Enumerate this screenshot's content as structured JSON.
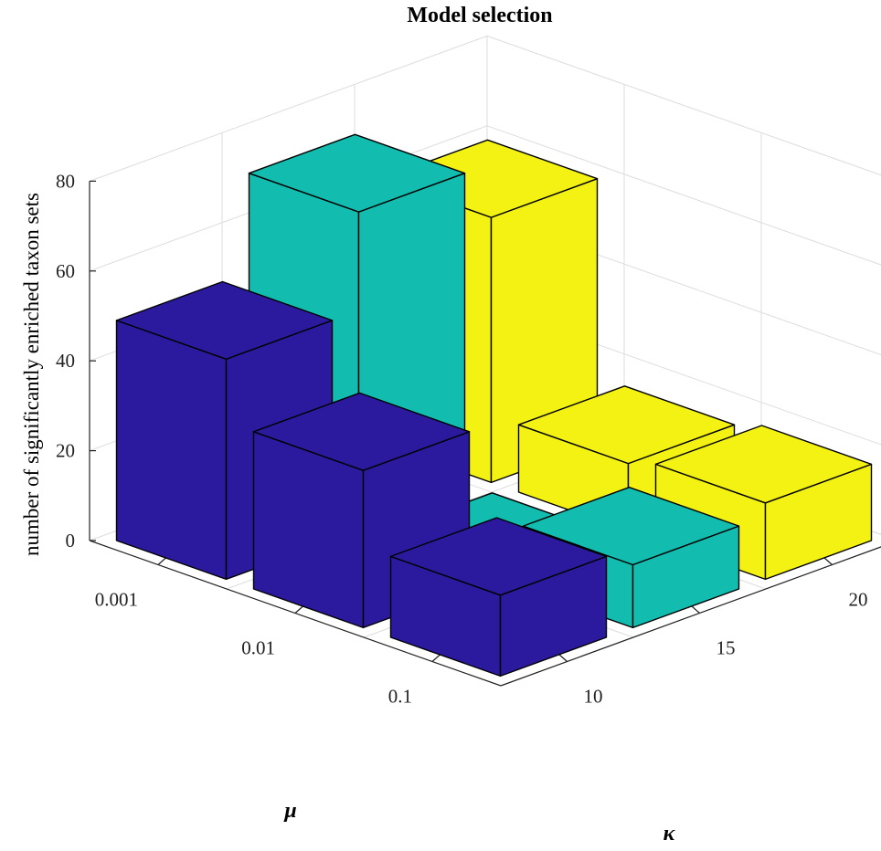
{
  "chart_data": {
    "type": "bar3d",
    "title": "Model selection",
    "zlabel": "number of significantly enriched taxon sets",
    "mu_label": "μ",
    "kappa_label": "κ",
    "mu_categories": [
      "0.001",
      "0.01",
      "0.1"
    ],
    "kappa_categories": [
      "10",
      "15",
      "20"
    ],
    "z_ticks": [
      "0",
      "20",
      "40",
      "60",
      "80"
    ],
    "zlim": [
      0,
      80
    ],
    "values": [
      {
        "mu": "0.001",
        "kappa": "10",
        "value": 49
      },
      {
        "mu": "0.01",
        "kappa": "10",
        "value": 35
      },
      {
        "mu": "0.1",
        "kappa": "10",
        "value": 18
      },
      {
        "mu": "0.001",
        "kappa": "15",
        "value": 71
      },
      {
        "mu": "0.01",
        "kappa": "15",
        "value": 2
      },
      {
        "mu": "0.1",
        "kappa": "15",
        "value": 14
      },
      {
        "mu": "0.001",
        "kappa": "20",
        "value": 59
      },
      {
        "mu": "0.01",
        "kappa": "20",
        "value": 15
      },
      {
        "mu": "0.1",
        "kappa": "20",
        "value": 17
      }
    ],
    "colors": {
      "10": "#2b1a9e",
      "15": "#12bdb0",
      "20": "#f4f213"
    },
    "grid": true
  }
}
